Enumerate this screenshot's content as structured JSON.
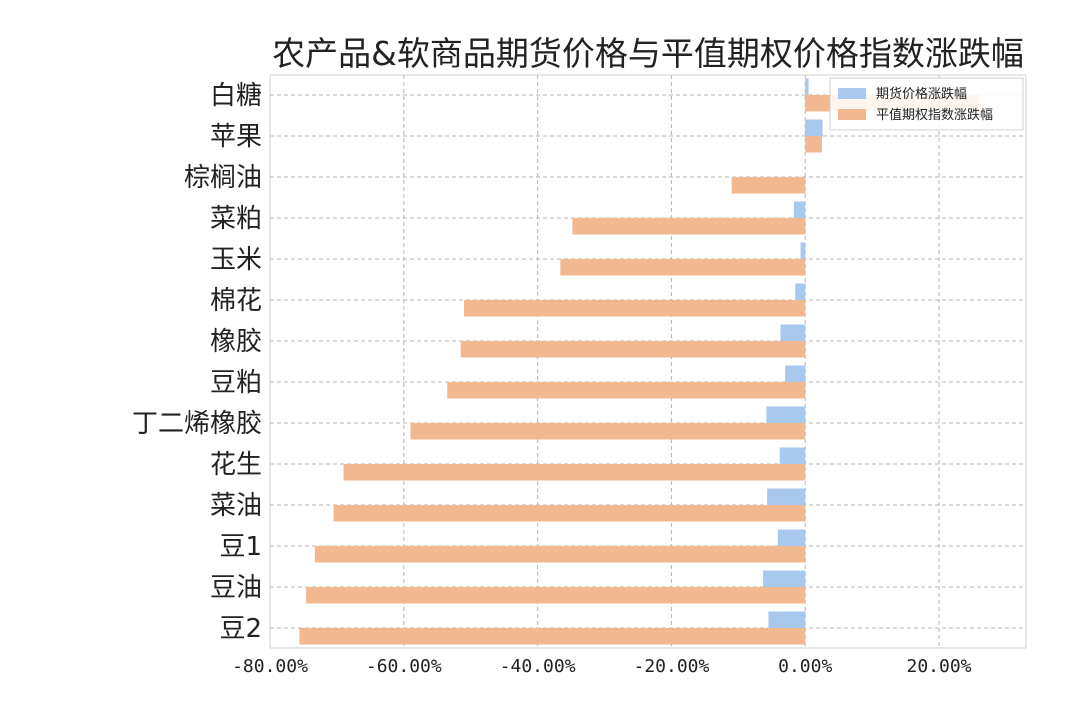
{
  "chart_data": {
    "type": "bar",
    "orientation": "horizontal",
    "title": "农产品&软商品期货价格与平值期权价格指数涨跌幅",
    "categories": [
      "白糖",
      "苹果",
      "棕榈油",
      "菜粕",
      "玉米",
      "棉花",
      "橡胶",
      "豆粕",
      "丁二烯橡胶",
      "花生",
      "菜油",
      "豆1",
      "豆油",
      "豆2"
    ],
    "series": [
      {
        "name": "期货价格涨跌幅",
        "color": "#a9c8ee",
        "values": [
          0.5,
          2.6,
          0.0,
          -1.7,
          -0.7,
          -1.5,
          -3.7,
          -3.0,
          -5.8,
          -3.8,
          -5.7,
          -4.1,
          -6.3,
          -5.5
        ]
      },
      {
        "name": "平值期权指数涨跌幅",
        "color": "#f2b890",
        "values": [
          26.0,
          2.5,
          -11.0,
          -34.8,
          -36.6,
          -51.0,
          -51.5,
          -53.5,
          -59.0,
          -69.0,
          -70.5,
          -73.3,
          -74.6,
          -75.6
        ]
      }
    ],
    "xlim": [
      -80.0,
      33.0
    ],
    "xticks": [
      -80,
      -60,
      -40,
      -20,
      0,
      20
    ],
    "xtick_labels": [
      "-80.00%",
      "-60.00%",
      "-40.00%",
      "-20.00%",
      "0.00%",
      "20.00%"
    ],
    "grid": true,
    "legend_position": "top-right",
    "xlabel": "",
    "ylabel": ""
  }
}
